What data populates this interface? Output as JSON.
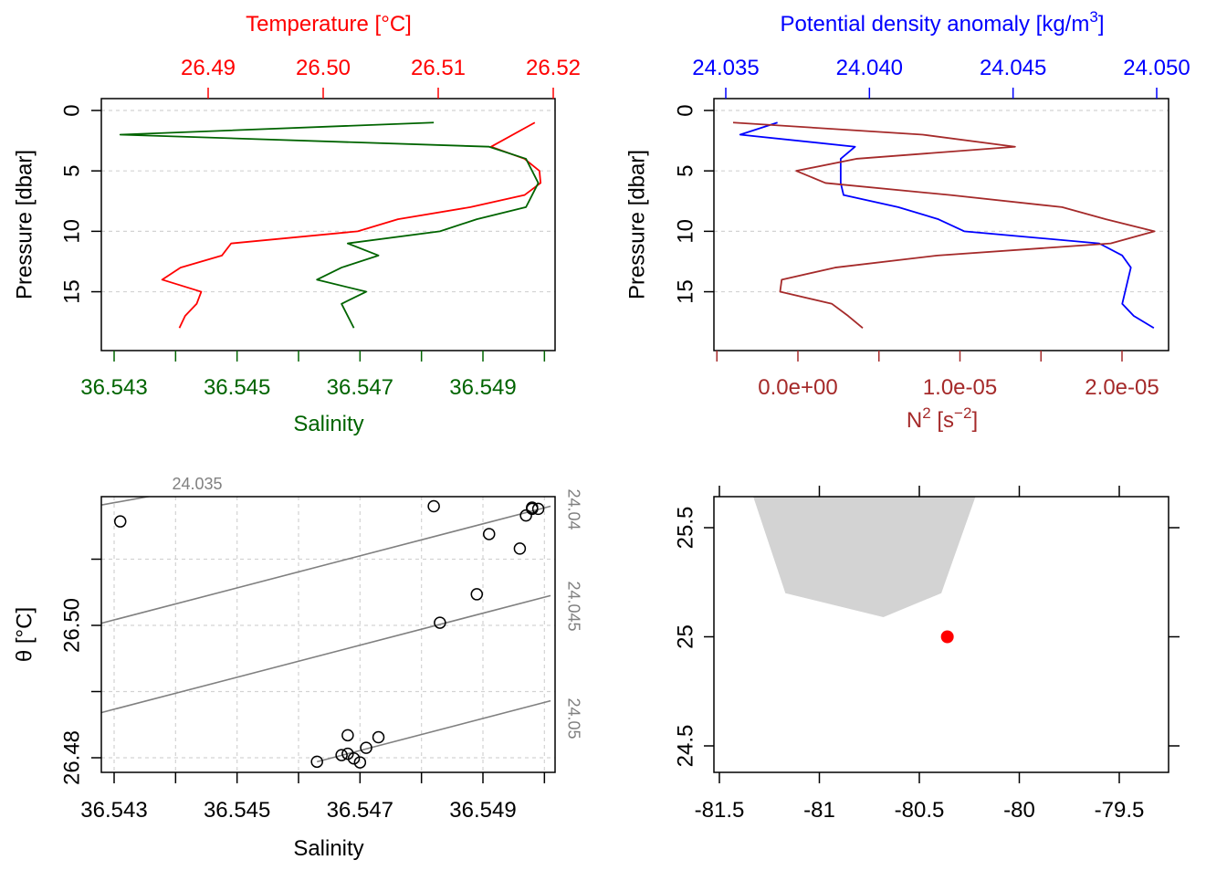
{
  "colors": {
    "temperature": "#ff0000",
    "salinity": "#006400",
    "density": "#0000ff",
    "n2": "#a52a2a",
    "grid": "#d3d3d3",
    "isopycnal": "#808080",
    "land": "#d3d3d3",
    "station": "#ff0000"
  },
  "chart_data": [
    {
      "type": "line",
      "panel": "profile-temperature-salinity",
      "y_axis": {
        "label": "Pressure [dbar]",
        "ticks": [
          "0",
          "5",
          "10",
          "15"
        ],
        "reversed": true,
        "range": [
          0,
          19
        ]
      },
      "x_top": {
        "label": "Temperature [°C]",
        "ticks": [
          "26.49",
          "26.50",
          "26.51",
          "26.52"
        ],
        "range": [
          26.481,
          26.5205
        ]
      },
      "x_bottom": {
        "label": "Salinity",
        "ticks": [
          "36.543",
          "36.545",
          "36.547",
          "36.549"
        ],
        "range": [
          36.5427,
          36.5501
        ]
      },
      "series": [
        {
          "axis": "top",
          "pressure": [
            1,
            3,
            4,
            5,
            6,
            7,
            8,
            9,
            10,
            11,
            12,
            13,
            14,
            15,
            16,
            17,
            18
          ],
          "values": [
            26.5184,
            26.5146,
            26.5175,
            26.5188,
            26.5189,
            26.5175,
            26.5128,
            26.5065,
            26.503,
            26.492,
            26.4912,
            26.4876,
            26.486,
            26.4894,
            26.489,
            26.488,
            26.4875
          ]
        },
        {
          "axis": "bottom",
          "pressure": [
            1,
            2,
            3,
            4,
            5,
            6,
            7,
            8,
            9,
            10,
            11,
            12,
            13,
            14,
            15,
            16,
            17,
            18
          ],
          "values": [
            36.5482,
            36.5431,
            36.5491,
            36.5497,
            36.5498,
            36.5499,
            36.5498,
            36.5497,
            36.5489,
            36.5483,
            36.5468,
            36.5473,
            36.5467,
            36.5463,
            36.5471,
            36.5467,
            36.5468,
            36.5469
          ]
        }
      ]
    },
    {
      "type": "line",
      "panel": "profile-density-n2",
      "y_axis": {
        "label": "Pressure [dbar]",
        "ticks": [
          "0",
          "5",
          "10",
          "15"
        ],
        "reversed": true,
        "range": [
          0,
          19
        ]
      },
      "x_top": {
        "label_main": "Potential density anomaly [kg/m",
        "label_sup": "3",
        "label_end": "]",
        "ticks": [
          "24.035",
          "24.040",
          "24.045",
          "24.050"
        ],
        "range": [
          24.0345,
          24.0505
        ]
      },
      "x_bottom": {
        "label_main": "N",
        "label_sup": "2",
        "label_mid": " [s",
        "label_sup2": "−2",
        "label_end": "]",
        "ticks": [
          "0.0e+00",
          "1.0e-05",
          "2.0e-05"
        ],
        "minor_ticks": [
          -5e-06,
          5e-06,
          1.5e-05
        ],
        "range": [
          -5.5e-06,
          2.27e-05
        ]
      },
      "series": [
        {
          "axis": "top",
          "pressure": [
            1,
            2,
            3,
            4,
            5,
            6,
            7,
            8,
            9,
            10,
            11,
            12,
            13,
            14,
            15,
            16,
            17,
            18
          ],
          "values": [
            24.0368,
            24.0355,
            24.0395,
            24.039,
            24.039,
            24.039,
            24.0391,
            24.041,
            24.0424,
            24.0433,
            24.048,
            24.0488,
            24.0491,
            24.049,
            24.0489,
            24.0488,
            24.0492,
            24.0499
          ]
        },
        {
          "axis": "bottom",
          "pressure": [
            1,
            2,
            3,
            4,
            5,
            6,
            7,
            8,
            9,
            10,
            11,
            12,
            13,
            14,
            15,
            16,
            17,
            18
          ],
          "values": [
            -4e-06,
            7.7e-06,
            1.34e-05,
            3.6e-06,
            -1e-07,
            1.7e-06,
            9.4e-06,
            1.63e-05,
            1.9e-05,
            2.2e-05,
            1.93e-05,
            8.6e-06,
            2.3e-06,
            -1e-06,
            -1.1e-06,
            2.1e-06,
            3.1e-06,
            4e-06
          ]
        }
      ]
    },
    {
      "type": "scatter",
      "panel": "ts-diagram",
      "xlabel": "Salinity",
      "ylabel": "θ [°C]",
      "x_ticks": [
        "36.543",
        "36.545",
        "36.547",
        "36.549"
      ],
      "y_ticks": [
        "26.48",
        "26.50"
      ],
      "xlim": [
        36.5427,
        36.5501
      ],
      "ylim": [
        26.4795,
        26.5197
      ],
      "isopycnals": [
        {
          "label": "24.035",
          "label_side": "top",
          "points": [
            [
              36.5428,
              26.5182
            ],
            [
              36.5443,
              26.5207
            ]
          ]
        },
        {
          "label": "24.04",
          "label_side": "right",
          "points": [
            [
              36.5427,
              26.5001
            ],
            [
              36.5501,
              26.518
            ]
          ]
        },
        {
          "label": "24.045",
          "label_side": "right",
          "points": [
            [
              36.5427,
              26.4866
            ],
            [
              36.5501,
              26.5045
            ]
          ]
        },
        {
          "label": "24.05",
          "label_side": "right",
          "points": [
            [
              36.5463,
              26.4794
            ],
            [
              36.5501,
              26.4886
            ]
          ]
        }
      ],
      "points": [
        [
          36.5431,
          26.5157
        ],
        [
          36.5482,
          26.518
        ],
        [
          36.5498,
          26.5178
        ],
        [
          36.5498,
          26.5176
        ],
        [
          36.5499,
          26.5176
        ],
        [
          36.5497,
          26.5166
        ],
        [
          36.5491,
          26.5138
        ],
        [
          36.5496,
          26.5116
        ],
        [
          36.5489,
          26.5047
        ],
        [
          36.5483,
          26.5004
        ],
        [
          36.5468,
          26.4834
        ],
        [
          36.5473,
          26.4831
        ],
        [
          36.5471,
          26.4815
        ],
        [
          36.5468,
          26.4806
        ],
        [
          36.5467,
          26.4804
        ],
        [
          36.5469,
          26.4799
        ],
        [
          36.547,
          26.4793
        ],
        [
          36.5463,
          26.4794
        ]
      ]
    },
    {
      "type": "map",
      "panel": "station-map",
      "x_ticks": [
        "-81.5",
        "-81",
        "-80.5",
        "-80",
        "-79.5"
      ],
      "y_ticks": [
        "24.5",
        "25",
        "25.5"
      ],
      "xlim": [
        -81.58,
        -79.34
      ],
      "ylim": [
        24.38,
        25.64
      ],
      "land_polygon": [
        [
          -81.33,
          25.64
        ],
        [
          -81.17,
          25.2
        ],
        [
          -80.68,
          25.09
        ],
        [
          -80.39,
          25.2
        ],
        [
          -80.22,
          25.64
        ]
      ],
      "station": {
        "lon": -80.36,
        "lat": 25.0
      }
    }
  ]
}
